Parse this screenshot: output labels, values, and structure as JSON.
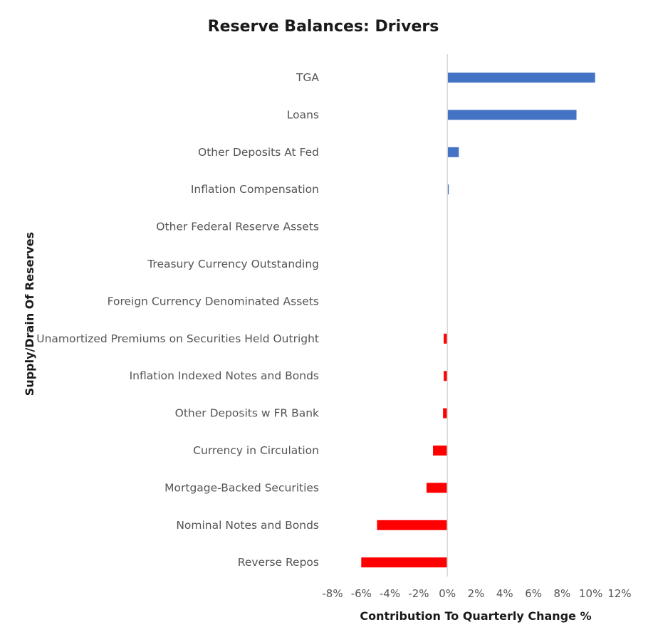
{
  "chart_data": {
    "type": "bar",
    "orientation": "horizontal",
    "title": "Reserve Balances: Drivers",
    "xlabel": "Contribution To Quarterly Change %",
    "ylabel": "Supply/Drain Of Reserves",
    "xlim": [
      -8,
      12
    ],
    "x_ticks": [
      "-8%",
      "-6%",
      "-4%",
      "-2%",
      "0%",
      "2%",
      "4%",
      "6%",
      "8%",
      "10%",
      "12%"
    ],
    "grid": false,
    "legend": "none",
    "colors": {
      "positive": "#4472C4",
      "negative": "#FF0000",
      "axis": "#D9D9D9"
    },
    "categories": [
      "TGA",
      "Loans",
      "Other Deposits At Fed",
      "Inflation Compensation",
      "Other Federal Reserve Assets",
      "Treasury Currency Outstanding",
      "Foreign Currency Denominated Assets",
      "Unamortized Premiums on Securities Held Outright",
      "Inflation Indexed Notes and Bonds",
      "Other Deposits w FR Bank",
      "Currency in Circulation",
      "Mortgage-Backed Securities",
      "Nominal Notes and Bonds",
      "Reverse Repos"
    ],
    "values": [
      10.3,
      9.0,
      0.8,
      0.1,
      0.0,
      0.0,
      0.0,
      -0.25,
      -0.25,
      -0.3,
      -1.0,
      -1.45,
      -4.9,
      -6.0
    ]
  }
}
